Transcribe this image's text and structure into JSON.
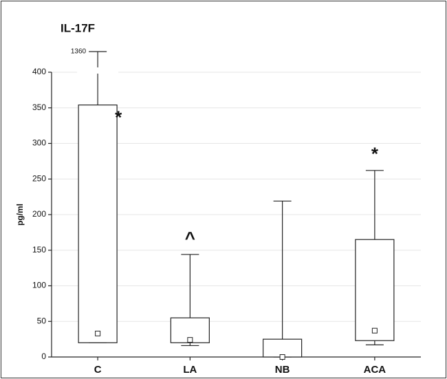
{
  "chart_data": {
    "type": "box",
    "title": "IL-17F",
    "y_label": "pg/ml",
    "categories": [
      "C",
      "LA",
      "NB",
      "ACA"
    ],
    "min": [
      20,
      16,
      0,
      17
    ],
    "q1": [
      20,
      20,
      0,
      23
    ],
    "median": [
      33,
      24,
      0,
      37
    ],
    "q3": [
      354,
      55,
      25,
      165
    ],
    "max": [
      1360,
      144,
      219,
      262
    ],
    "ylim": [
      0,
      400
    ],
    "yticks": [
      0,
      50,
      100,
      150,
      200,
      250,
      300,
      350,
      400
    ],
    "grid": true,
    "annotations": [
      "*",
      "^",
      null,
      "*"
    ]
  }
}
